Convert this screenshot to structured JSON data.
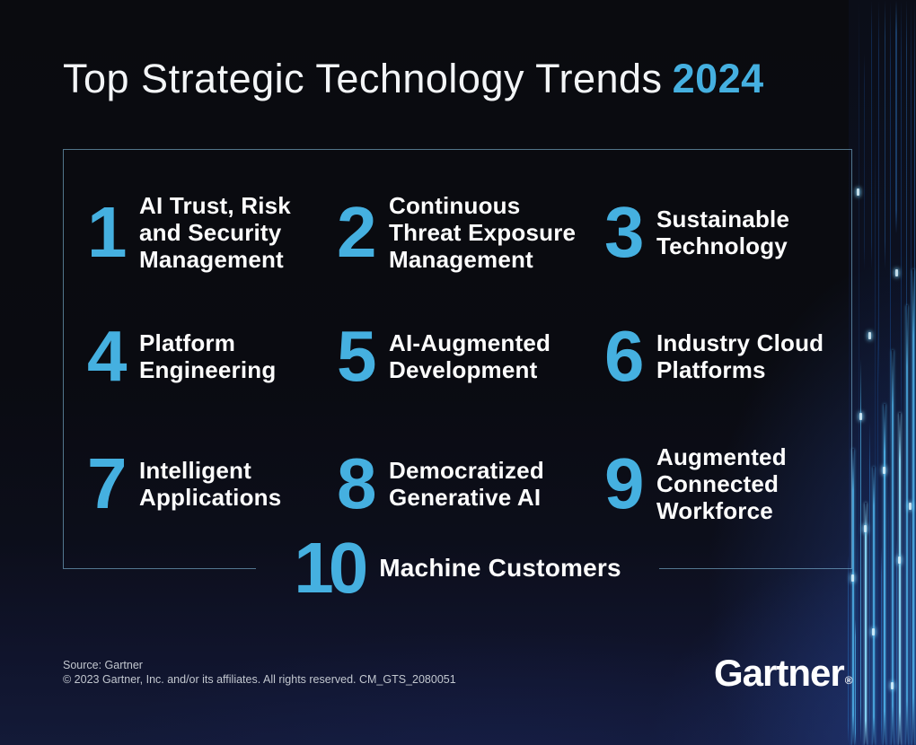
{
  "title": {
    "main": "Top Strategic Technology Trends",
    "year": "2024"
  },
  "trends": [
    {
      "number": "1",
      "label": "AI Trust, Risk\nand Security\nManagement"
    },
    {
      "number": "2",
      "label": "Continuous\nThreat Exposure\nManagement"
    },
    {
      "number": "3",
      "label": "Sustainable\nTechnology"
    },
    {
      "number": "4",
      "label": "Platform\nEngineering"
    },
    {
      "number": "5",
      "label": "AI-Augmented\nDevelopment"
    },
    {
      "number": "6",
      "label": "Industry Cloud\nPlatforms"
    },
    {
      "number": "7",
      "label": "Intelligent\nApplications"
    },
    {
      "number": "8",
      "label": "Democratized\nGenerative AI"
    },
    {
      "number": "9",
      "label": "Augmented\nConnected\nWorkforce"
    },
    {
      "number": "10",
      "label": "Machine Customers"
    }
  ],
  "footer": {
    "source": "Source: Gartner",
    "copyright": "© 2023 Gartner, Inc. and/or its affiliates. All rights reserved. CM_GTS_2080051"
  },
  "logo": {
    "text": "Gartner",
    "registered": "®"
  },
  "colors": {
    "accent_blue": "#45b0e0",
    "border_blue": "rgba(130,188,220,0.6)",
    "background_navy": "#131a38"
  }
}
